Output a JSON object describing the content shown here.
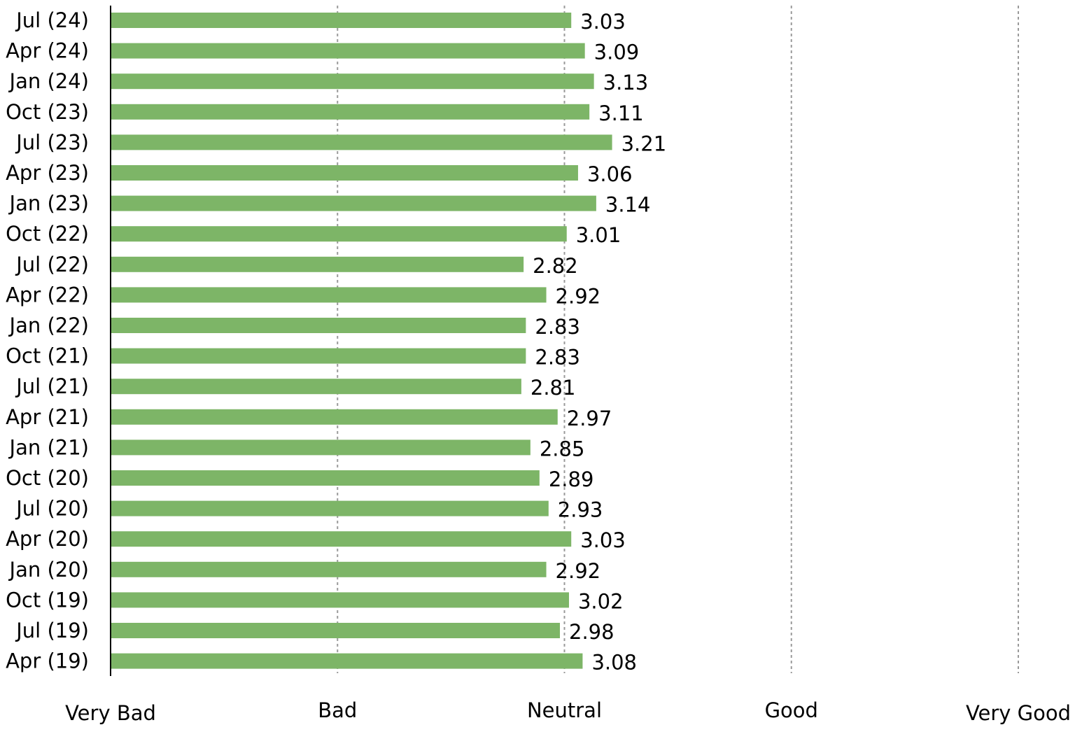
{
  "chart_data": {
    "type": "bar",
    "orientation": "horizontal",
    "title": "",
    "xlabel": "",
    "ylabel": "",
    "categories": [
      "Jul (24)",
      "Apr (24)",
      "Jan (24)",
      "Oct (23)",
      "Jul (23)",
      "Apr (23)",
      "Jan (23)",
      "Oct (22)",
      "Jul (22)",
      "Apr (22)",
      "Jan (22)",
      "Oct (21)",
      "Jul (21)",
      "Apr (21)",
      "Jan (21)",
      "Oct (20)",
      "Jul (20)",
      "Apr (20)",
      "Jan (20)",
      "Oct (19)",
      "Jul (19)",
      "Apr (19)"
    ],
    "values": [
      3.03,
      3.09,
      3.13,
      3.11,
      3.21,
      3.06,
      3.14,
      3.01,
      2.82,
      2.92,
      2.83,
      2.83,
      2.81,
      2.97,
      2.85,
      2.89,
      2.93,
      3.03,
      2.92,
      3.02,
      2.98,
      3.08
    ],
    "value_labels": [
      "3.03",
      "3.09",
      "3.13",
      "3.11",
      "3.21",
      "3.06",
      "3.14",
      "3.01",
      "2.82",
      "2.92",
      "2.83",
      "2.83",
      "2.81",
      "2.97",
      "2.85",
      "2.89",
      "2.93",
      "3.03",
      "2.92",
      "3.02",
      "2.98",
      "3.08"
    ],
    "xlim": [
      1,
      5
    ],
    "x_ticks": [
      1,
      2,
      3,
      4,
      5
    ],
    "x_tick_labels": [
      "Very Bad",
      "Bad",
      "Neutral",
      "Good",
      "Very Good"
    ],
    "grid": "vertical dashed",
    "legend": "none",
    "colors": {
      "bar": "#7db567",
      "grid": "#9a9a9a",
      "axis": "#000000",
      "text": "#000000"
    }
  }
}
